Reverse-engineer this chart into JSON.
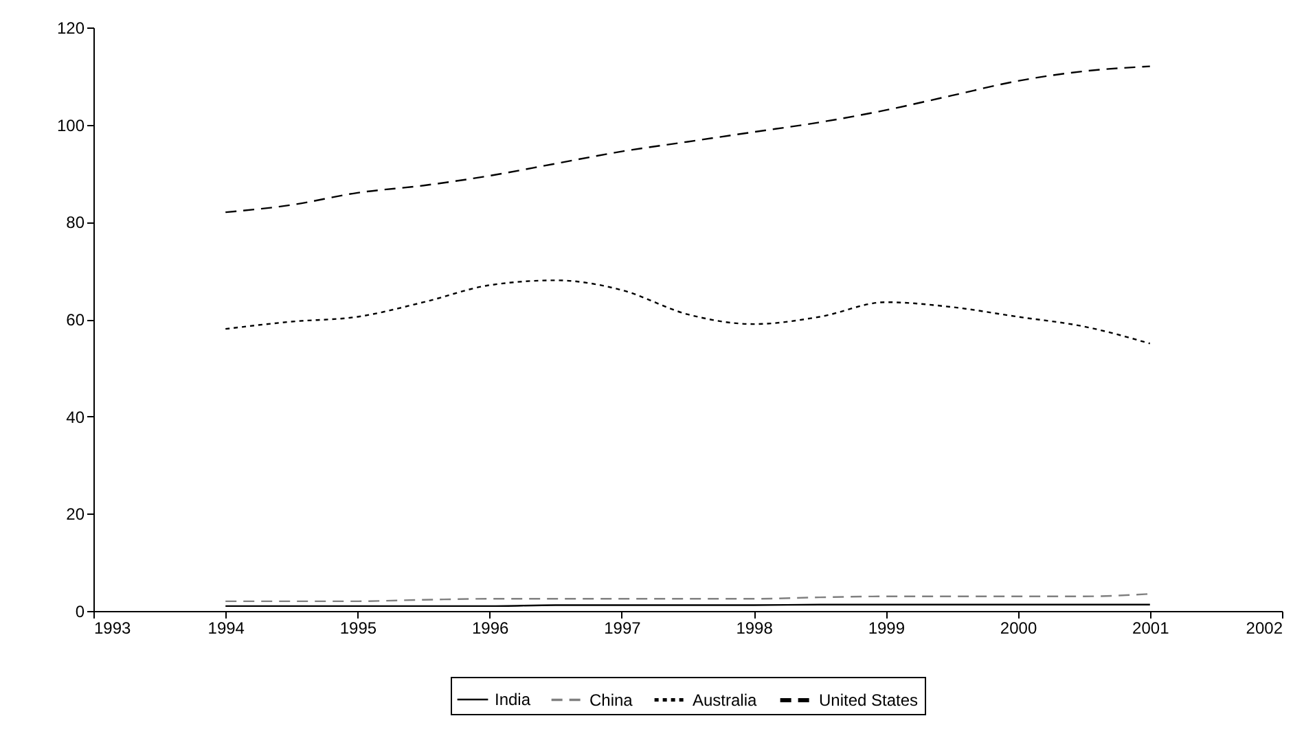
{
  "chart_data": {
    "type": "line",
    "x": [
      1994,
      1994.5,
      1995,
      1995.5,
      1996,
      1996.5,
      1997,
      1997.5,
      1998,
      1998.5,
      1999,
      1999.5,
      2000,
      2000.5,
      2001
    ],
    "series": [
      {
        "name": "India",
        "color": "#000000",
        "line_style": "solid",
        "values": [
          1,
          1,
          1,
          1,
          1,
          1.2,
          1.2,
          1.2,
          1.2,
          1.3,
          1.3,
          1.3,
          1.3,
          1.3,
          1.3
        ]
      },
      {
        "name": "China",
        "color": "#808080",
        "line_style": "dashed",
        "values": [
          2,
          2,
          2,
          2.3,
          2.5,
          2.5,
          2.5,
          2.5,
          2.5,
          2.8,
          3,
          3,
          3,
          3,
          3.5
        ]
      },
      {
        "name": "Australia",
        "color": "#000000",
        "line_style": "dotted",
        "values": [
          58,
          59.5,
          60.5,
          63.5,
          67,
          68,
          66,
          61,
          59,
          60.5,
          63.5,
          62.5,
          60.5,
          58.5,
          55
        ]
      },
      {
        "name": "United States",
        "color": "#000000",
        "line_style": "dashed",
        "values": [
          82,
          83.5,
          86,
          87.5,
          89.5,
          92,
          94.5,
          96.5,
          98.5,
          100.5,
          103,
          106,
          109,
          111,
          112
        ]
      }
    ],
    "xlim": [
      1993,
      2002
    ],
    "xticks": [
      1993,
      1994,
      1995,
      1996,
      1997,
      1998,
      1999,
      2000,
      2001,
      2002
    ],
    "ylim": [
      0,
      120
    ],
    "yticks": [
      0,
      20,
      40,
      60,
      80,
      100,
      120
    ],
    "grid": false,
    "legend": "bottom"
  }
}
